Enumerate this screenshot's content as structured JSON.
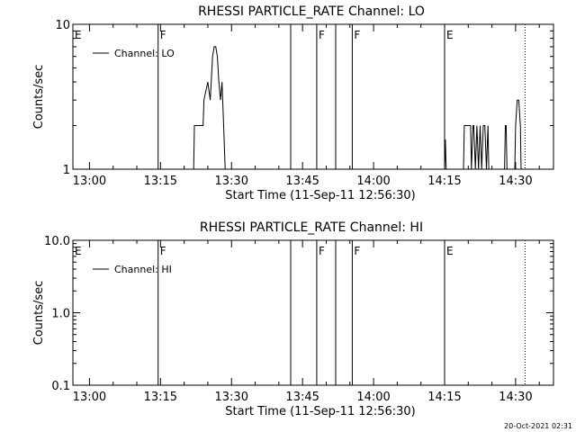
{
  "footer": {
    "timestamp": "20-Oct-2021 02:31"
  },
  "chart_data": [
    {
      "type": "line",
      "title": "RHESSI PARTICLE_RATE Channel: LO",
      "xlabel": "Start Time (11-Sep-11 12:56:30)",
      "ylabel": "Counts/sec",
      "yscale": "log",
      "xlim": [
        "12:56:30",
        "14:38:00"
      ],
      "ylim": [
        1,
        10
      ],
      "xticks": [
        "13:00",
        "13:15",
        "13:30",
        "13:45",
        "14:00",
        "14:15",
        "14:30"
      ],
      "yticks": [
        "1",
        "10"
      ],
      "legend": {
        "position": "top-left",
        "entries": [
          "Channel: LO"
        ]
      },
      "series": [
        {
          "name": "Channel: LO",
          "x": [
            "13:22:00",
            "13:22:10",
            "13:24:00",
            "13:24:10",
            "13:25:00",
            "13:25:30",
            "13:26:00",
            "13:26:20",
            "13:26:40",
            "13:27:00",
            "13:27:20",
            "13:27:40",
            "13:28:00",
            "13:28:20",
            "13:28:40",
            "13:29:00",
            "13:29:10",
            "14:15:00",
            "14:15:10",
            "14:15:20",
            "14:15:30",
            "14:19:00",
            "14:19:10",
            "14:20:30",
            "14:20:40",
            "14:21:00",
            "14:21:10",
            "14:21:30",
            "14:21:50",
            "14:22:10",
            "14:22:30",
            "14:22:50",
            "14:23:10",
            "14:23:30",
            "14:23:50",
            "14:24:10",
            "14:24:20",
            "14:27:40",
            "14:27:50",
            "14:28:00",
            "14:28:10",
            "14:29:50",
            "14:30:00",
            "14:30:20",
            "14:30:40",
            "14:31:00",
            "14:31:10"
          ],
          "y": [
            1,
            2,
            2,
            3,
            4,
            3,
            6,
            7,
            7,
            6,
            4,
            3,
            4,
            2,
            1,
            1,
            1,
            1,
            1.6,
            1,
            1,
            1,
            2,
            2,
            1,
            2,
            2,
            1,
            2,
            1,
            2,
            1,
            2,
            2,
            1,
            2,
            1,
            1,
            2,
            2,
            1,
            1,
            2,
            3,
            3,
            2,
            1
          ]
        }
      ],
      "annotations": [
        {
          "label": "E",
          "time": "12:56:30",
          "style": "solid"
        },
        {
          "label": "F",
          "time": "13:14:30",
          "style": "solid"
        },
        {
          "label": "",
          "time": "13:42:30",
          "style": "solid"
        },
        {
          "label": "F",
          "time": "13:48:00",
          "style": "solid"
        },
        {
          "label": "",
          "time": "13:52:00",
          "style": "solid"
        },
        {
          "label": "F",
          "time": "13:55:30",
          "style": "solid"
        },
        {
          "label": "E",
          "time": "14:15:00",
          "style": "solid"
        },
        {
          "label": "",
          "time": "14:32:00",
          "style": "dotted"
        }
      ]
    },
    {
      "type": "line",
      "title": "RHESSI PARTICLE_RATE Channel: HI",
      "xlabel": "Start Time (11-Sep-11 12:56:30)",
      "ylabel": "Counts/sec",
      "yscale": "log",
      "xlim": [
        "12:56:30",
        "14:38:00"
      ],
      "ylim": [
        0.1,
        10
      ],
      "xticks": [
        "13:00",
        "13:15",
        "13:30",
        "13:45",
        "14:00",
        "14:15",
        "14:30"
      ],
      "yticks": [
        "0.1",
        "1.0",
        "10.0"
      ],
      "legend": {
        "position": "top-left",
        "entries": [
          "Channel: HI"
        ]
      },
      "series": [
        {
          "name": "Channel: HI",
          "x": [],
          "y": []
        }
      ],
      "annotations": [
        {
          "label": "E",
          "time": "12:56:30",
          "style": "solid"
        },
        {
          "label": "F",
          "time": "13:14:30",
          "style": "solid"
        },
        {
          "label": "",
          "time": "13:42:30",
          "style": "solid"
        },
        {
          "label": "F",
          "time": "13:48:00",
          "style": "solid"
        },
        {
          "label": "",
          "time": "13:52:00",
          "style": "solid"
        },
        {
          "label": "F",
          "time": "13:55:30",
          "style": "solid"
        },
        {
          "label": "E",
          "time": "14:15:00",
          "style": "solid"
        },
        {
          "label": "",
          "time": "14:32:00",
          "style": "dotted"
        }
      ]
    }
  ]
}
